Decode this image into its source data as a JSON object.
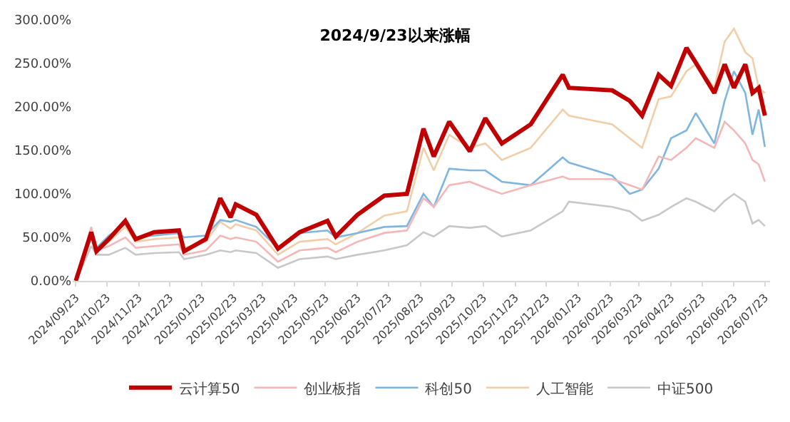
{
  "chart_data": {
    "type": "line",
    "title": "2024/9/23以来涨幅",
    "x": [
      "2024-09-23",
      "2024-10-08",
      "2024-10-13",
      "2024-10-25",
      "2024-11-10",
      "2024-11-20",
      "2024-12-08",
      "2025-01-01",
      "2025-01-06",
      "2025-01-27",
      "2025-02-10",
      "2025-02-20",
      "2025-02-25",
      "2025-03-17",
      "2025-04-07",
      "2025-04-28",
      "2025-05-25",
      "2025-06-02",
      "2025-06-23",
      "2025-07-19",
      "2025-08-10",
      "2025-08-26",
      "2025-09-05",
      "2025-09-20",
      "2025-10-10",
      "2025-10-25",
      "2025-11-10",
      "2025-12-08",
      "2026-01-08",
      "2026-01-14",
      "2026-02-25",
      "2026-03-14",
      "2026-03-26",
      "2026-04-11",
      "2026-04-23",
      "2026-05-08",
      "2026-05-17",
      "2026-06-04",
      "2026-06-14",
      "2026-06-23",
      "2026-07-04",
      "2026-07-11",
      "2026-07-17",
      "2026-07-23"
    ],
    "series": [
      {
        "name": "云计算50",
        "color": "#c00000",
        "values": [
          0,
          56,
          34,
          48,
          69,
          48,
          56,
          58,
          34,
          48,
          95,
          73,
          88,
          76,
          37,
          56,
          69,
          51,
          76,
          98,
          100,
          175,
          143,
          183,
          149,
          187,
          158,
          180,
          237,
          222,
          219,
          207,
          190,
          237,
          224,
          268,
          251,
          216,
          249,
          222,
          249,
          216,
          222,
          190
        ]
      },
      {
        "name": "创业板指",
        "color": "#f4b6b6",
        "values": [
          0,
          62,
          35,
          40,
          50,
          38,
          40,
          42,
          30,
          35,
          52,
          48,
          50,
          45,
          22,
          35,
          38,
          33,
          45,
          55,
          58,
          95,
          85,
          110,
          114,
          107,
          100,
          110,
          120,
          117,
          117,
          110,
          105,
          143,
          139,
          153,
          164,
          153,
          183,
          173,
          158,
          139,
          134,
          114
        ]
      },
      {
        "name": "科创50",
        "color": "#7eb6e0",
        "values": [
          0,
          55,
          38,
          52,
          65,
          50,
          52,
          55,
          50,
          52,
          70,
          68,
          70,
          62,
          38,
          55,
          58,
          50,
          55,
          62,
          63,
          100,
          85,
          129,
          127,
          127,
          114,
          110,
          142,
          136,
          121,
          100,
          105,
          129,
          164,
          173,
          193,
          158,
          207,
          241,
          216,
          168,
          197,
          154
        ]
      },
      {
        "name": "人工智能",
        "color": "#f0cfa8",
        "values": [
          0,
          50,
          35,
          45,
          62,
          45,
          48,
          50,
          38,
          45,
          68,
          60,
          65,
          58,
          30,
          45,
          48,
          42,
          55,
          75,
          80,
          153,
          127,
          168,
          153,
          158,
          139,
          153,
          197,
          190,
          180,
          164,
          153,
          209,
          212,
          241,
          249,
          222,
          275,
          290,
          263,
          256,
          222,
          216
        ]
      },
      {
        "name": "中证500",
        "color": "#c8c8c8",
        "values": [
          0,
          40,
          30,
          30,
          38,
          30,
          32,
          33,
          25,
          30,
          35,
          33,
          35,
          32,
          15,
          25,
          28,
          25,
          30,
          35,
          41,
          56,
          51,
          63,
          61,
          63,
          51,
          58,
          80,
          91,
          85,
          80,
          69,
          76,
          85,
          95,
          91,
          80,
          92,
          100,
          91,
          66,
          70,
          63
        ]
      }
    ],
    "xlim": [
      "2024-09-20",
      "2026-07-28"
    ],
    "xticks": [
      {
        "value": "2024-09-23",
        "label": "2024/09/23"
      },
      {
        "value": "2024-10-23",
        "label": "2024/10/23"
      },
      {
        "value": "2024-11-23",
        "label": "2024/11/23"
      },
      {
        "value": "2024-12-23",
        "label": "2024/12/23"
      },
      {
        "value": "2025-01-23",
        "label": "2025/01/23"
      },
      {
        "value": "2025-02-23",
        "label": "2025/02/23"
      },
      {
        "value": "2025-03-23",
        "label": "2025/03/23"
      },
      {
        "value": "2025-04-23",
        "label": "2025/04/23"
      },
      {
        "value": "2025-05-23",
        "label": "2025/05/23"
      },
      {
        "value": "2025-06-23",
        "label": "2025/06/23"
      },
      {
        "value": "2025-07-23",
        "label": "2025/07/23"
      },
      {
        "value": "2025-08-23",
        "label": "2025/08/23"
      },
      {
        "value": "2025-09-23",
        "label": "2025/09/23"
      },
      {
        "value": "2025-10-23",
        "label": "2025/10/23"
      },
      {
        "value": "2025-11-23",
        "label": "2025/11/23"
      },
      {
        "value": "2025-12-23",
        "label": "2025/12/23"
      },
      {
        "value": "2026-01-23",
        "label": "2026/01/23"
      },
      {
        "value": "2026-02-23",
        "label": "2026/02/23"
      },
      {
        "value": "2026-03-23",
        "label": "2026/03/23"
      },
      {
        "value": "2026-04-23",
        "label": "2026/04/23"
      },
      {
        "value": "2026-05-23",
        "label": "2026/05/23"
      },
      {
        "value": "2026-06-23",
        "label": "2026/06/23"
      },
      {
        "value": "2026-07-23",
        "label": "2026/07/23"
      }
    ],
    "ylim": [
      0,
      300
    ],
    "yticks": [
      {
        "value": 0,
        "label": "0.00%"
      },
      {
        "value": 50,
        "label": "50.00%"
      },
      {
        "value": 100,
        "label": "100.00%"
      },
      {
        "value": 150,
        "label": "150.00%"
      },
      {
        "value": 200,
        "label": "200.00%"
      },
      {
        "value": 250,
        "label": "250.00%"
      },
      {
        "value": 300,
        "label": "300.00%"
      }
    ],
    "grid": false,
    "legend": "bottom",
    "marker": "none",
    "line_style": "solid"
  }
}
